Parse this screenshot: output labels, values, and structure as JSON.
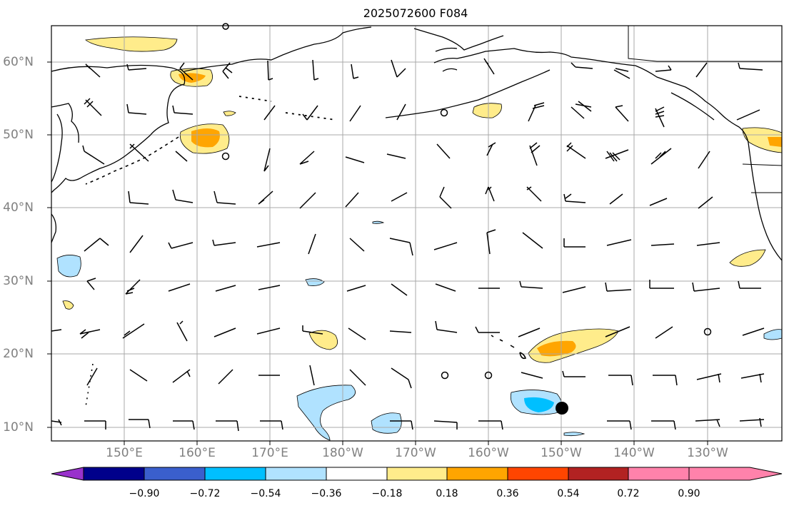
{
  "title": "2025072600 F084",
  "lat_labels": [
    "60°N",
    "50°N",
    "40°N",
    "30°N",
    "20°N",
    "10°N"
  ],
  "lon_labels": [
    "150°E",
    "160°E",
    "170°E",
    "180°W",
    "170°W",
    "160°W",
    "150°W",
    "140°W",
    "130°W"
  ],
  "colorbar": {
    "tick_labels": [
      "−0.90",
      "−0.72",
      "−0.54",
      "−0.36",
      "−0.18",
      "0.18",
      "0.36",
      "0.54",
      "0.72",
      "0.90"
    ],
    "colors": [
      "#9932cc",
      "#00008b",
      "#3a5fcd",
      "#00bfff",
      "#b0e2ff",
      "#ffffff",
      "#ffec8b",
      "#ffa500",
      "#ff4500",
      "#b22222",
      "#ff82ab"
    ]
  },
  "colors": {
    "coast": "#000000",
    "grid": "#a9a9a9",
    "label": "#808080",
    "contour": "#000000"
  }
}
